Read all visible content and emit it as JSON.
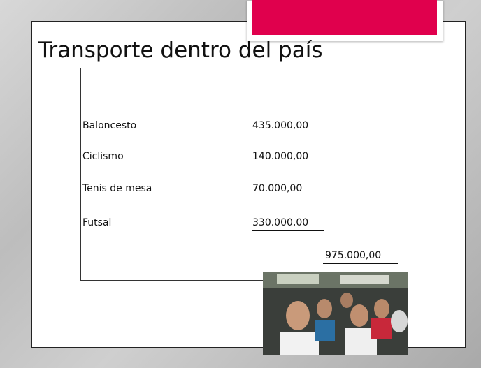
{
  "title": "Transporte dentro del país",
  "table": {
    "rows": [
      [
        "Baloncesto",
        "435.000,00"
      ],
      [
        "Ciclismo",
        "140.000,00"
      ],
      [
        "Tenis de mesa",
        "70.000,00"
      ],
      [
        "Futsal",
        "330.000,00"
      ]
    ],
    "total": "975.000,00"
  }
}
